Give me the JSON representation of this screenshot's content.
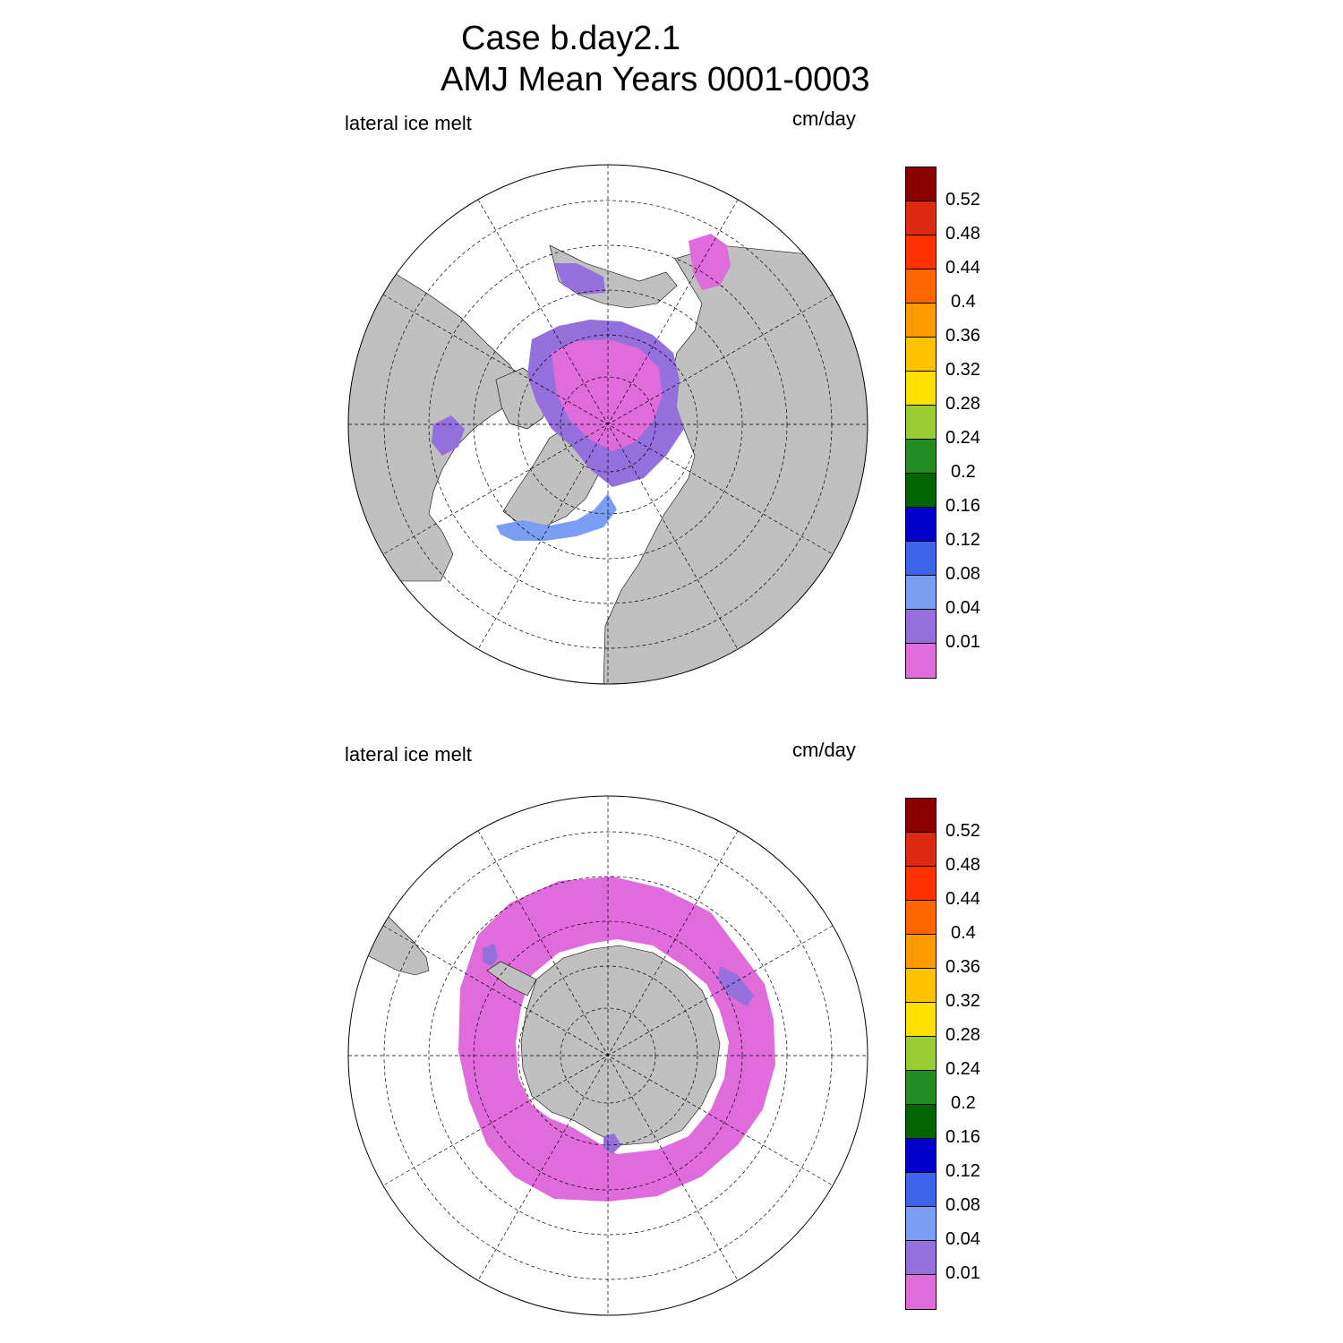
{
  "title": {
    "line1": "Case b.day2.1",
    "line2": "AMJ Mean   Years 0001-0003"
  },
  "panels": [
    {
      "id": "north",
      "hemisphere": "Northern",
      "variable_label": "lateral ice melt",
      "units_label": "cm/day"
    },
    {
      "id": "south",
      "hemisphere": "Southern",
      "variable_label": "lateral ice melt",
      "units_label": "cm/day"
    }
  ],
  "colorbar": {
    "levels": [
      "0.01",
      "0.04",
      "0.08",
      "0.12",
      "0.16",
      "0.2",
      "0.24",
      "0.28",
      "0.32",
      "0.36",
      "0.4",
      "0.44",
      "0.48",
      "0.52"
    ],
    "colors": [
      "#e06cdc",
      "#9370db",
      "#7b9ef5",
      "#3d63e8",
      "#0000cd",
      "#006400",
      "#228b22",
      "#9acd32",
      "#ffe000",
      "#ffc200",
      "#ff9a00",
      "#ff6600",
      "#ff3300",
      "#dd2a12",
      "#8b0000"
    ]
  },
  "map_style": {
    "land_color": "#c0c0c0",
    "ocean_color": "#ffffff",
    "grid_style": "dashed"
  }
}
